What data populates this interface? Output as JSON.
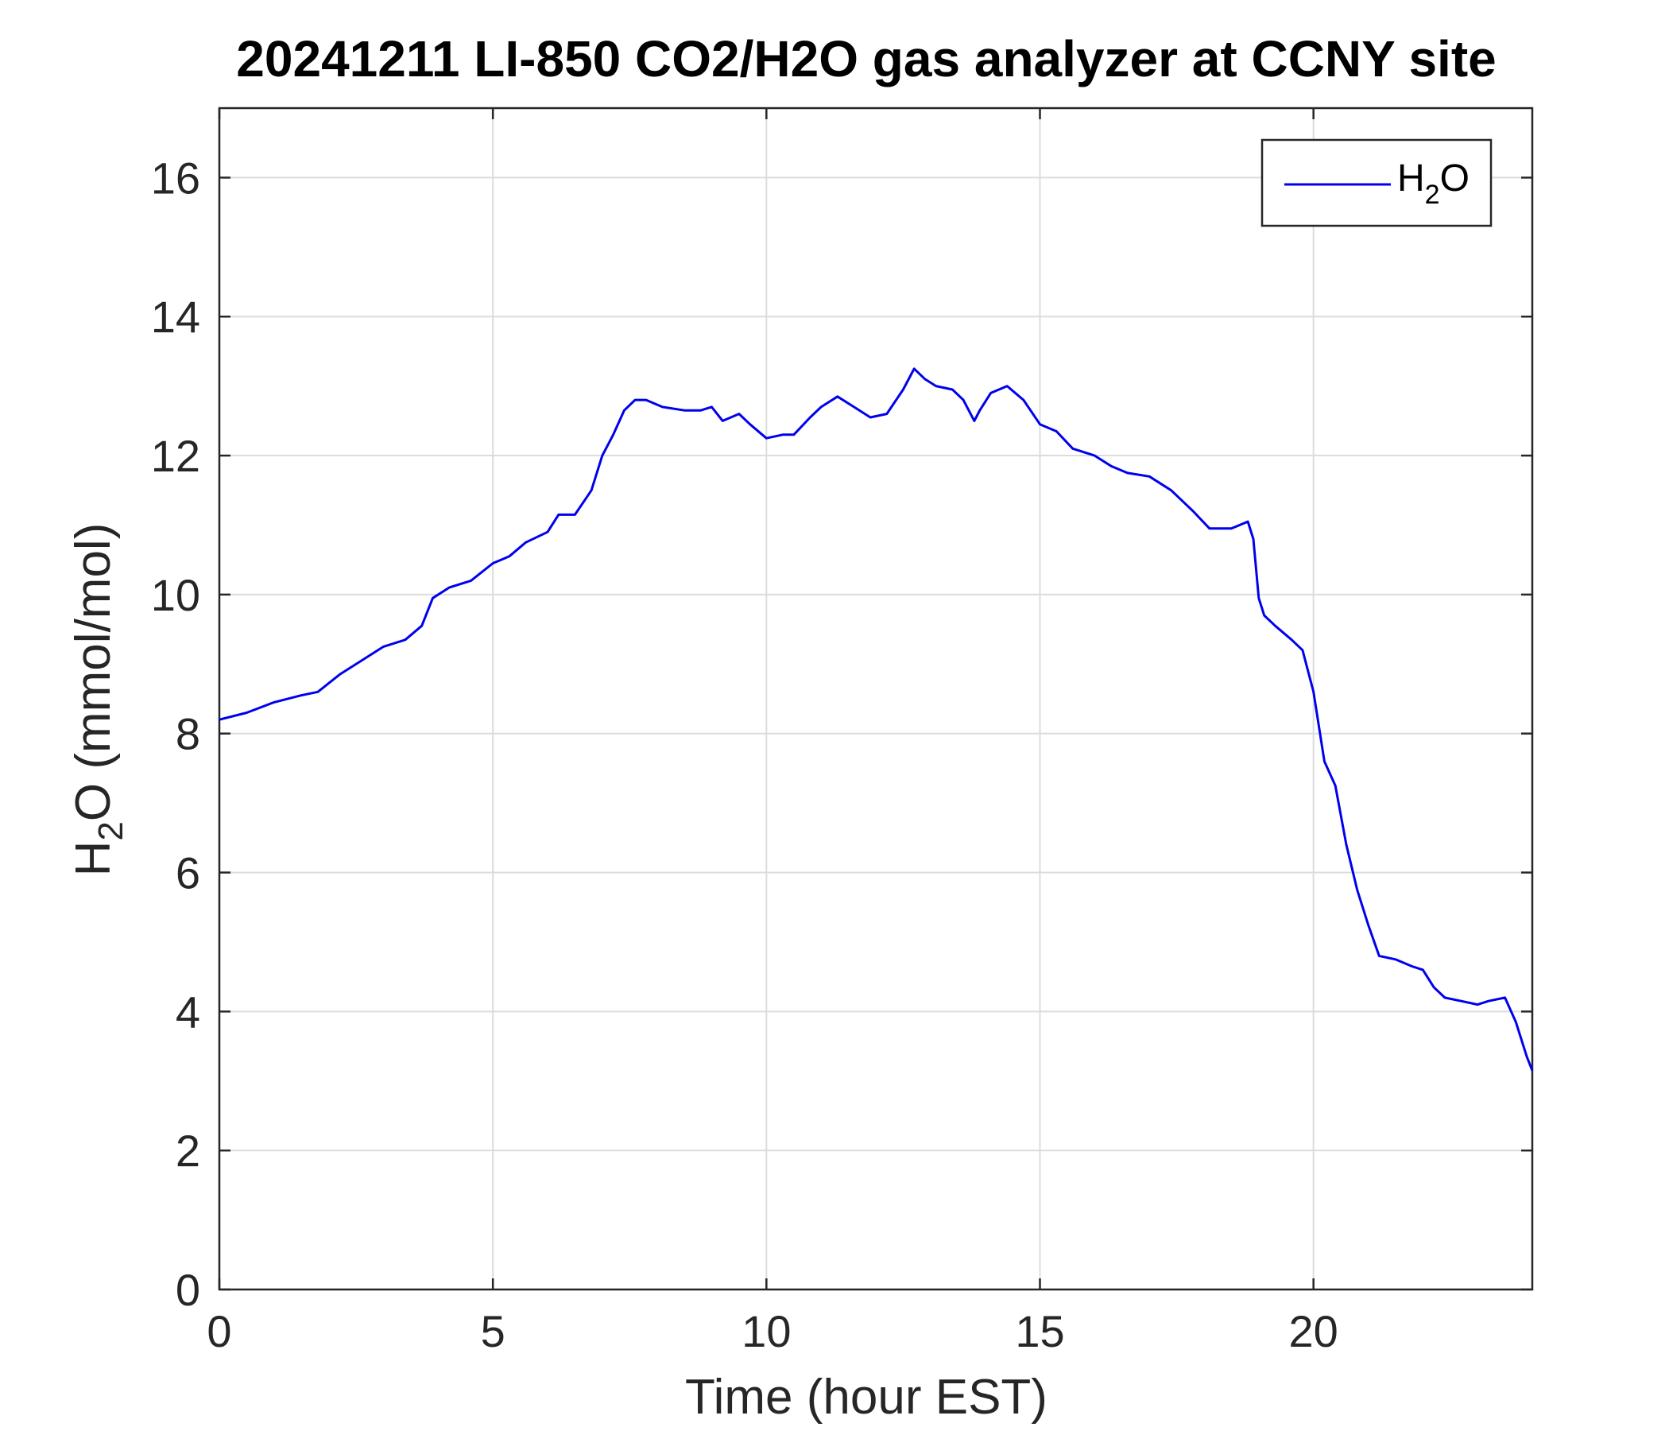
{
  "chart_data": {
    "type": "line",
    "title": "20241211 LI-850 CO2/H2O gas analyzer at CCNY site",
    "xlabel": "Time (hour EST)",
    "ylabel": "H2O (mmol/mol)",
    "xlim": [
      0,
      24
    ],
    "ylim": [
      0,
      17
    ],
    "xticks": [
      0,
      5,
      10,
      15,
      20
    ],
    "yticks": [
      0,
      2,
      4,
      6,
      8,
      10,
      12,
      14,
      16
    ],
    "grid": true,
    "legend_position": "top-right",
    "colors": {
      "series": "#0000ee",
      "grid": "#dcdcdc",
      "axes": "#262626"
    },
    "series": [
      {
        "name": "H2O",
        "x": [
          0,
          0.5,
          1,
          1.5,
          1.8,
          2.2,
          2.6,
          3.0,
          3.4,
          3.7,
          3.9,
          4.2,
          4.6,
          5.0,
          5.3,
          5.6,
          6.0,
          6.2,
          6.5,
          6.8,
          7.0,
          7.2,
          7.4,
          7.6,
          7.8,
          8.1,
          8.5,
          8.8,
          9.0,
          9.2,
          9.5,
          9.7,
          10.0,
          10.3,
          10.5,
          10.8,
          11.0,
          11.3,
          11.6,
          11.9,
          12.2,
          12.5,
          12.7,
          12.9,
          13.1,
          13.4,
          13.6,
          13.8,
          13.9,
          14.1,
          14.4,
          14.7,
          15.0,
          15.3,
          15.6,
          16.0,
          16.3,
          16.6,
          17.0,
          17.4,
          17.8,
          18.1,
          18.5,
          18.8,
          18.9,
          19.0,
          19.1,
          19.3,
          19.6,
          19.8,
          20.0,
          20.2,
          20.4,
          20.6,
          20.8,
          21.0,
          21.2,
          21.5,
          21.8,
          22.0,
          22.2,
          22.4,
          22.7,
          23.0,
          23.2,
          23.5,
          23.7,
          23.9,
          24.0
        ],
        "y": [
          8.2,
          8.3,
          8.45,
          8.55,
          8.6,
          8.85,
          9.05,
          9.25,
          9.35,
          9.55,
          9.95,
          10.1,
          10.2,
          10.45,
          10.55,
          10.75,
          10.9,
          11.15,
          11.15,
          11.5,
          12.0,
          12.3,
          12.65,
          12.8,
          12.8,
          12.7,
          12.65,
          12.65,
          12.7,
          12.5,
          12.6,
          12.45,
          12.25,
          12.3,
          12.3,
          12.55,
          12.7,
          12.85,
          12.7,
          12.55,
          12.6,
          12.95,
          13.25,
          13.1,
          13.0,
          12.95,
          12.8,
          12.5,
          12.65,
          12.9,
          13.0,
          12.8,
          12.45,
          12.35,
          12.1,
          12.0,
          11.85,
          11.75,
          11.7,
          11.5,
          11.2,
          10.95,
          10.95,
          11.05,
          10.8,
          9.95,
          9.7,
          9.55,
          9.35,
          9.2,
          8.6,
          7.6,
          7.25,
          6.4,
          5.75,
          5.25,
          4.8,
          4.75,
          4.65,
          4.6,
          4.35,
          4.2,
          4.15,
          4.1,
          4.15,
          4.2,
          3.85,
          3.35,
          3.15
        ]
      }
    ]
  },
  "legend": {
    "label_main": "H",
    "label_sub": "2",
    "label_tail": "O"
  },
  "ylabel_parts": {
    "main": "H",
    "sub": "2",
    "tail": "O (mmol/mol)"
  }
}
